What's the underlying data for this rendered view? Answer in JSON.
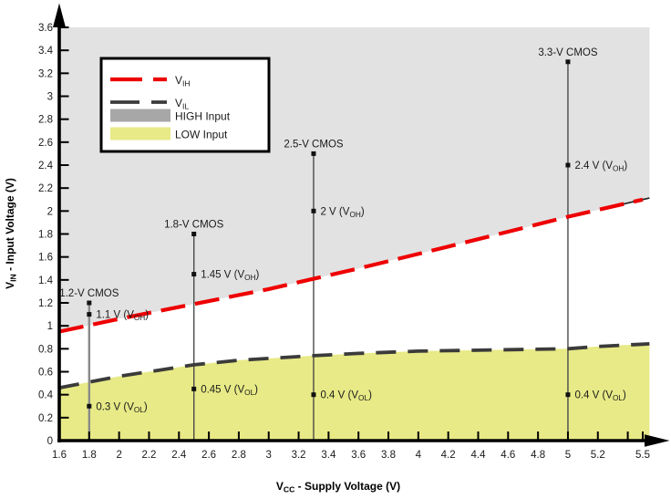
{
  "figure": {
    "kind": "logic-level-compatibility-plot",
    "x_axis_title": "V{CC} - Supply Voltage (V)",
    "y_axis_title": "V{IN} - Input Voltage (V)"
  },
  "chart_data": {
    "type": "line",
    "title": "",
    "xlabel": "V{CC} - Supply Voltage (V)",
    "ylabel": "V{IN} - Input Voltage (V)",
    "xlim": [
      1.6,
      5.5
    ],
    "ylim": [
      0,
      3.6
    ],
    "grid": false,
    "x_ticks": [
      1.6,
      1.8,
      2,
      2.2,
      2.4,
      2.6,
      2.8,
      3,
      3.2,
      3.4,
      3.6,
      3.8,
      4,
      4.2,
      4.4,
      4.6,
      4.8,
      5,
      5.2,
      5.4,
      5.5
    ],
    "x_tick_labels": [
      "1.6",
      "1.8",
      "2",
      "2.2",
      "2.4",
      "2.6",
      "2.8",
      "3",
      "3.2",
      "3.4",
      "3.6",
      "3.8",
      "4",
      "4.2",
      "4.4",
      "4.6",
      "4.8",
      "5",
      "5.2",
      "",
      "5.5"
    ],
    "y_ticks": [
      0,
      0.2,
      0.4,
      0.6,
      0.8,
      1,
      1.2,
      1.4,
      1.6,
      1.8,
      2,
      2.2,
      2.4,
      2.6,
      2.8,
      3,
      3.2,
      3.4,
      3.6
    ],
    "y_tick_labels": [
      "0",
      "0.2",
      "0.4",
      "0.6",
      "0.8",
      "1",
      "1.2",
      "1.4",
      "1.6",
      "1.8",
      "2",
      "2.2",
      "2.4",
      "2.6",
      "2.8",
      "3",
      "3.2",
      "3.4",
      "3.6"
    ],
    "series": [
      {
        "name": "VIH",
        "label": "V{IH}",
        "line_style": "dashed",
        "color": "#ee0000",
        "points": [
          [
            1.6,
            0.95
          ],
          [
            2.0,
            1.06
          ],
          [
            2.5,
            1.19
          ],
          [
            3.0,
            1.32
          ],
          [
            3.3,
            1.41
          ],
          [
            3.6,
            1.5
          ],
          [
            4.2,
            1.69
          ],
          [
            4.6,
            1.82
          ],
          [
            5.0,
            1.95
          ],
          [
            5.5,
            2.1
          ]
        ]
      },
      {
        "name": "VIL",
        "label": "V{IL}",
        "line_style": "dashed",
        "color": "#3b3b3b",
        "points": [
          [
            1.6,
            0.46
          ],
          [
            2.0,
            0.56
          ],
          [
            2.5,
            0.66
          ],
          [
            2.8,
            0.7
          ],
          [
            3.3,
            0.74
          ],
          [
            3.6,
            0.76
          ],
          [
            4.0,
            0.78
          ],
          [
            4.5,
            0.79
          ],
          [
            5.0,
            0.8
          ],
          [
            5.2,
            0.82
          ],
          [
            5.5,
            0.84
          ]
        ]
      }
    ],
    "regions": [
      {
        "name": "HIGH Input",
        "color": "#e2e2e2",
        "area": "above VIH curve up to 3.6 V"
      },
      {
        "name": "LOW Input",
        "color": "#e8ea87",
        "area": "below VIL curve down to 0 V"
      }
    ],
    "annotations": [
      {
        "title": "1.2-V CMOS",
        "x": 1.8,
        "line_top": 1.2,
        "line_color": "#8a8a8a",
        "line_width": 2.4,
        "points": [
          {
            "y": 1.1,
            "label": "1.1 V (V{OH})"
          },
          {
            "y": 0.3,
            "label": "0.3 V (V{OL})"
          }
        ]
      },
      {
        "title": "1.8-V CMOS",
        "x": 2.5,
        "line_top": 1.8,
        "line_color": "#4a4a4a",
        "line_width": 1.4,
        "points": [
          {
            "y": 1.45,
            "label": "1.45 V (V{OH})"
          },
          {
            "y": 0.45,
            "label": "0.45 V (V{OL})"
          }
        ]
      },
      {
        "title": "2.5-V CMOS",
        "x": 3.3,
        "line_top": 2.5,
        "line_color": "#4a4a4a",
        "line_width": 1.4,
        "points": [
          {
            "y": 2,
            "label": "2 V (V{OH})"
          },
          {
            "y": 0.4,
            "label": "0.4 V (V{OL})"
          }
        ]
      },
      {
        "title": "3.3-V CMOS",
        "x": 5,
        "line_top": 3.3,
        "line_color": "#4a4a4a",
        "line_width": 1.4,
        "points": [
          {
            "y": 2.4,
            "label": "2.4 V (V{OH})"
          },
          {
            "y": 0.4,
            "label": "0.4 V (V{OL})"
          }
        ]
      }
    ],
    "legend": {
      "position": "top-left",
      "items": [
        {
          "label": "V{IH}",
          "swatch": "dashed-line",
          "color": "#ee0000"
        },
        {
          "label": "V{IL}",
          "swatch": "dashed-line",
          "color": "#3b3b3b"
        },
        {
          "label": "HIGH Input",
          "swatch": "rect",
          "color": "#a7a7a7"
        },
        {
          "label": "LOW Input",
          "swatch": "rect",
          "color": "#e8ea87"
        }
      ]
    }
  }
}
